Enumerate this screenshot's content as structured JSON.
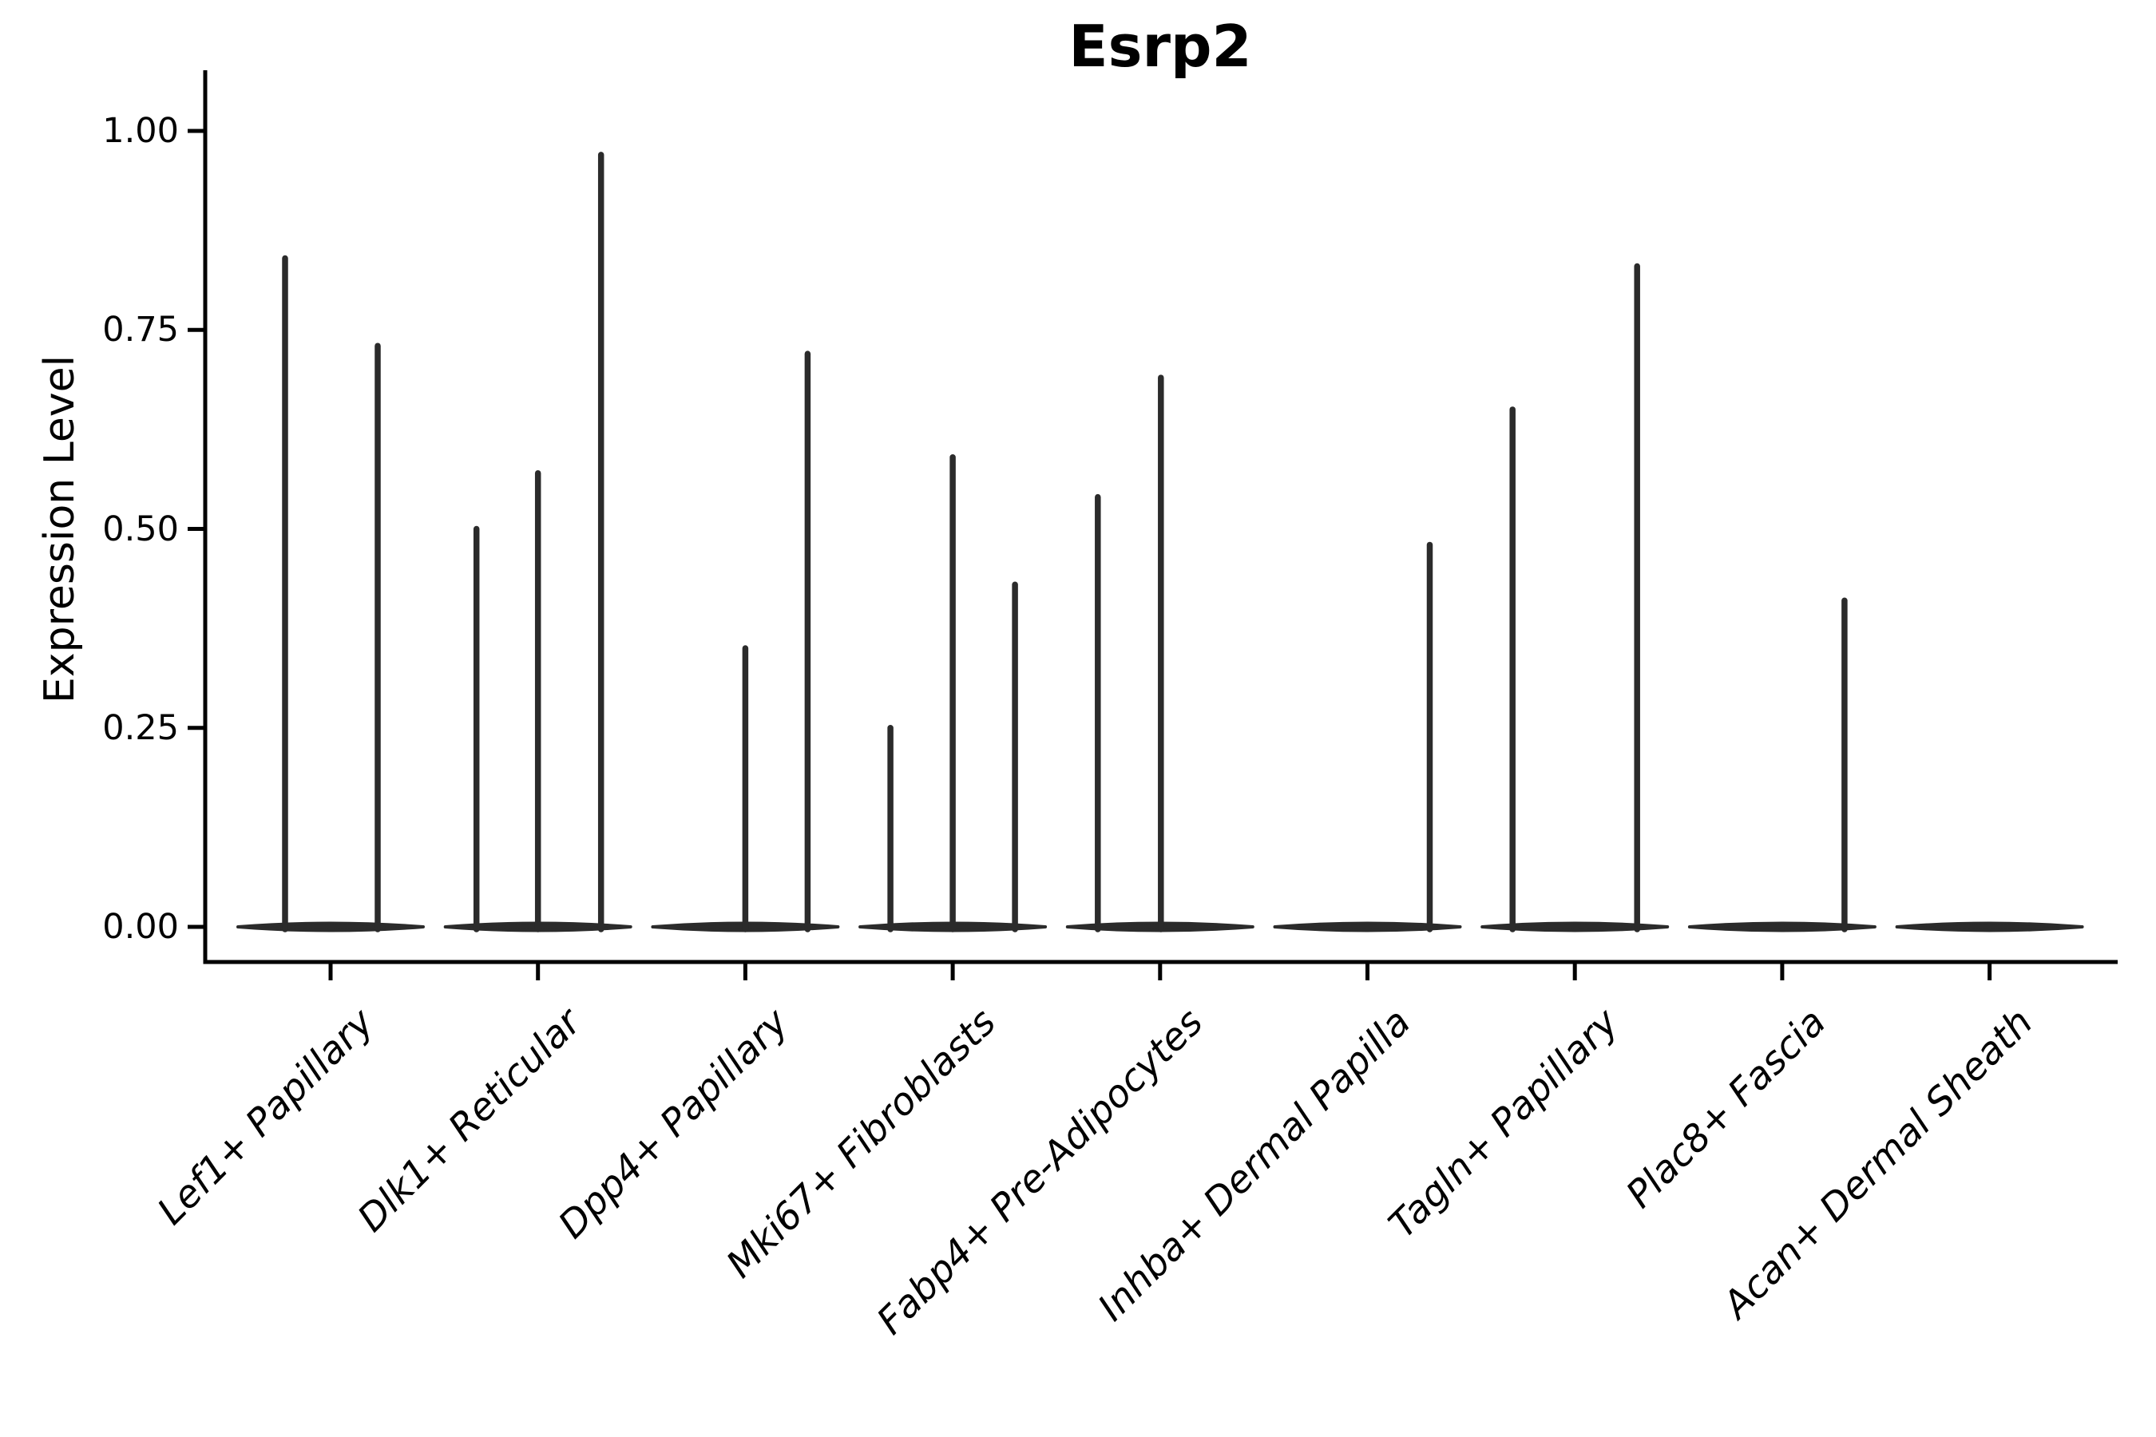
{
  "title": "Esrp2",
  "colors": {
    "violin": "#2b2b2b",
    "axis": "#000000",
    "background": "#ffffff"
  },
  "chart_data": {
    "type": "violin",
    "title": "Esrp2",
    "xlabel": "",
    "ylabel": "Expression Level",
    "ylim": [
      0,
      1
    ],
    "grid": "off",
    "legend": "none",
    "yticks": [
      {
        "label": "0.00",
        "value": 0.0
      },
      {
        "label": "0.25",
        "value": 0.25
      },
      {
        "label": "0.50",
        "value": 0.5
      },
      {
        "label": "0.75",
        "value": 0.75
      },
      {
        "label": "1.00",
        "value": 1.0
      }
    ],
    "categories": [
      {
        "label": "Lef1+ Papillary",
        "spikes": [
          {
            "offset": -57,
            "value": 0.84
          },
          {
            "offset": 59,
            "value": 0.73
          }
        ]
      },
      {
        "label": "Dlk1+ Reticular",
        "spikes": [
          {
            "offset": -77,
            "value": 0.5
          },
          {
            "offset": 0,
            "value": 0.57
          },
          {
            "offset": 79,
            "value": 0.97
          }
        ]
      },
      {
        "label": "Dpp4+ Papillary",
        "spikes": [
          {
            "offset": 0,
            "value": 0.35
          },
          {
            "offset": 78,
            "value": 0.72
          }
        ]
      },
      {
        "label": "Mki67+ Fibroblasts",
        "spikes": [
          {
            "offset": -78,
            "value": 0.25
          },
          {
            "offset": 0,
            "value": 0.59
          },
          {
            "offset": 78,
            "value": 0.43
          }
        ]
      },
      {
        "label": "Fabp4+ Pre-Adipocytes",
        "spikes": [
          {
            "offset": -78,
            "value": 0.54
          },
          {
            "offset": 1,
            "value": 0.69
          }
        ]
      },
      {
        "label": "Inhba+ Dermal Papilla",
        "spikes": [
          {
            "offset": 78,
            "value": 0.48
          }
        ]
      },
      {
        "label": "Tagln+ Papillary",
        "spikes": [
          {
            "offset": -78,
            "value": 0.65
          },
          {
            "offset": 78,
            "value": 0.83
          }
        ]
      },
      {
        "label": "Plac8+ Fascia",
        "spikes": [
          {
            "offset": 78,
            "value": 0.41
          }
        ]
      },
      {
        "label": "Acan+ Dermal Sheath",
        "spikes": []
      }
    ]
  }
}
